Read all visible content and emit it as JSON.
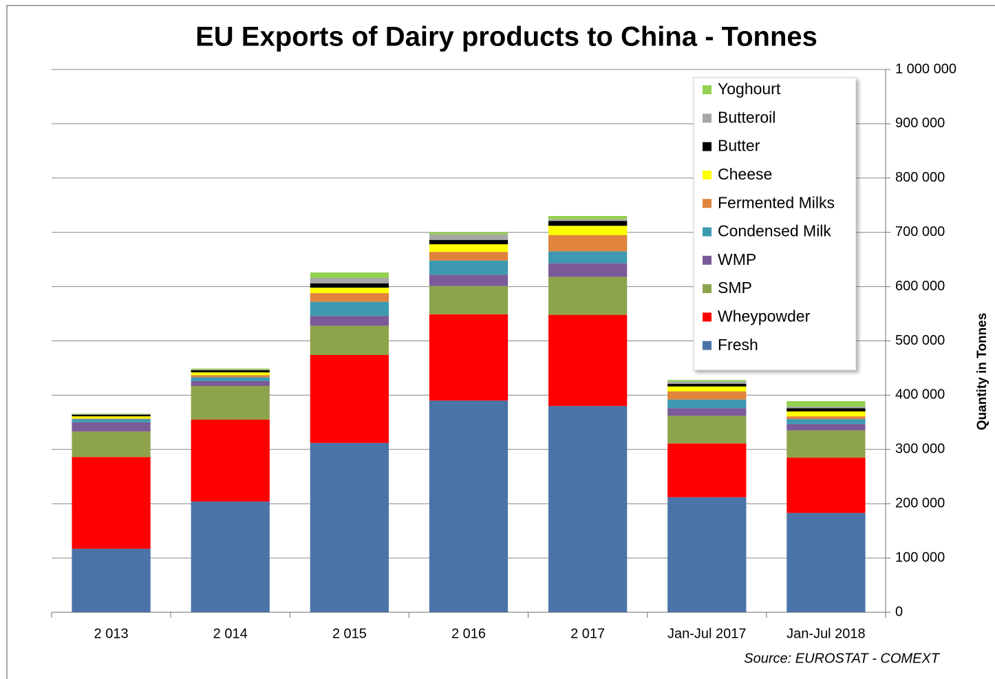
{
  "chart_data": {
    "type": "stacked_bar",
    "title": "EU Exports of Dairy products to China - Tonnes",
    "y_label": "Quantity in Tonnes",
    "annotation": "Source: EUROSTAT - COMEXT",
    "categories": [
      "2 013",
      "2 014",
      "2 015",
      "2 016",
      "2 017",
      "Jan-Jul 2017",
      "Jan-Jul 2018"
    ],
    "series": [
      {
        "name": "Fresh",
        "color": "#4a73a8",
        "values": [
          117000,
          204000,
          312000,
          390000,
          380000,
          212000,
          183000
        ]
      },
      {
        "name": "Wheypowder",
        "color": "#ff0000",
        "values": [
          169000,
          151000,
          162000,
          159000,
          168000,
          99000,
          102000
        ]
      },
      {
        "name": "SMP",
        "color": "#8ea44c",
        "values": [
          47000,
          62000,
          54000,
          52000,
          70000,
          51000,
          50000
        ]
      },
      {
        "name": "WMP",
        "color": "#7a5a98",
        "values": [
          17000,
          9000,
          18000,
          21000,
          25000,
          14000,
          12000
        ]
      },
      {
        "name": "Condensed Milk",
        "color": "#3d9ab0",
        "values": [
          6000,
          7000,
          26000,
          26000,
          22000,
          16000,
          9000
        ]
      },
      {
        "name": "Fermented Milks",
        "color": "#e0843c",
        "values": [
          1000,
          4000,
          16000,
          16000,
          30000,
          15000,
          5000
        ]
      },
      {
        "name": "Cheese",
        "color": "#ffff00",
        "values": [
          4000,
          5000,
          10000,
          14000,
          17000,
          9000,
          9000
        ]
      },
      {
        "name": "Butter",
        "color": "#000000",
        "values": [
          3000,
          4000,
          8000,
          8000,
          9000,
          5000,
          6000
        ]
      },
      {
        "name": "Butteroil",
        "color": "#a6a6a6",
        "values": [
          1000,
          1000,
          10000,
          10000,
          3000,
          4000,
          3000
        ]
      },
      {
        "name": "Yoghourt",
        "color": "#92d050",
        "values": [
          1000,
          2000,
          10000,
          4000,
          6000,
          3000,
          10000
        ]
      }
    ],
    "ylim": [
      0,
      1000000
    ],
    "yticks": [
      0,
      {
        "value": 100000,
        "label": "100 000"
      },
      {
        "value": 200000,
        "label": "200 000"
      },
      {
        "value": 300000,
        "label": "300 000"
      },
      {
        "value": 400000,
        "label": "400 000"
      },
      {
        "value": 500000,
        "label": "500 000"
      },
      {
        "value": 600000,
        "label": "600 000"
      },
      {
        "value": 700000,
        "label": "700 000"
      },
      {
        "value": 800000,
        "label": "800 000"
      },
      {
        "value": 900000,
        "label": "900 000"
      },
      {
        "value": 1000000,
        "label": "1 000 000"
      }
    ],
    "grid": true,
    "legend": "upper right"
  }
}
